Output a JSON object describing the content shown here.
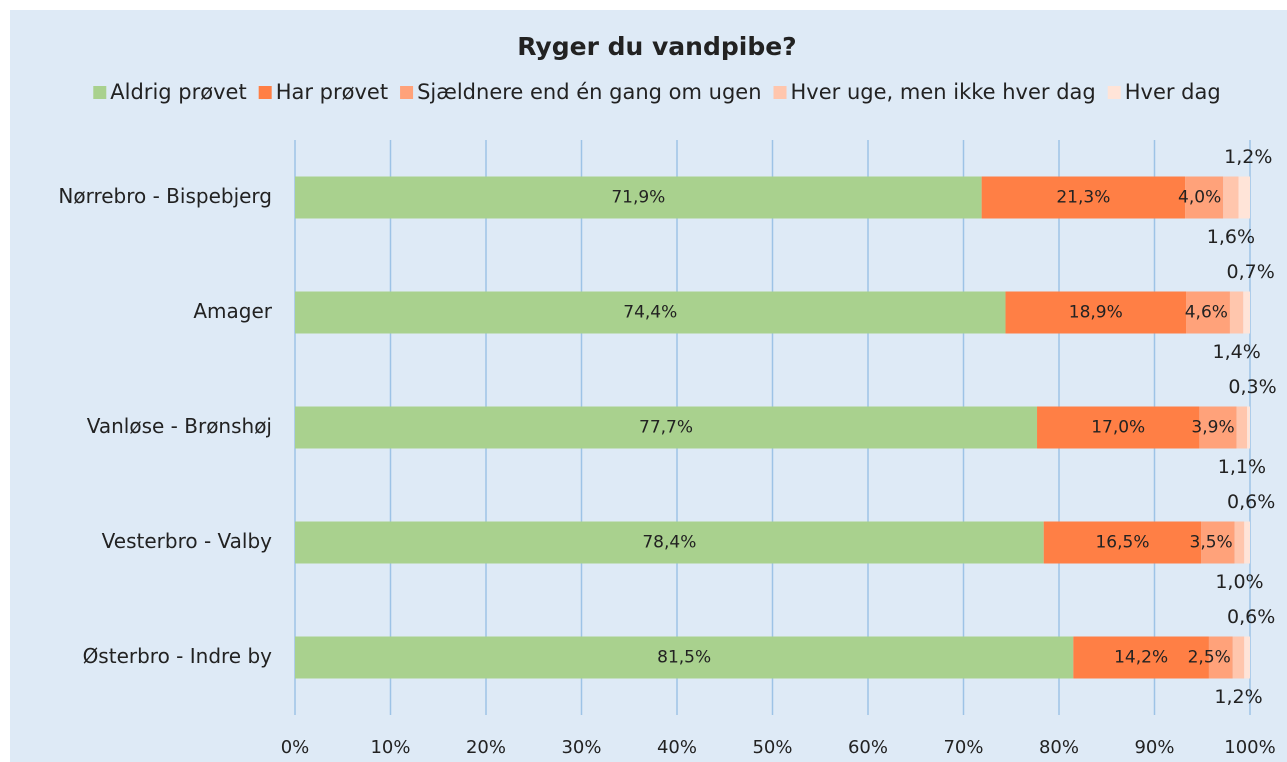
{
  "chart_data": {
    "type": "stacked_barh",
    "title": "Ryger du vandpibe?",
    "categories": [
      "Nørrebro - Bispebjerg",
      "Amager",
      "Vanløse - Brønshøj",
      "Vesterbro - Valby",
      "Østerbro - Indre by"
    ],
    "series": [
      {
        "name": "Aldrig prøvet",
        "color": "#a9d18e",
        "values": [
          71.9,
          74.4,
          77.7,
          78.4,
          81.5
        ],
        "value_labels": [
          "71,9%",
          "74,4%",
          "77,7%",
          "78,4%",
          "81,5%"
        ]
      },
      {
        "name": "Har prøvet",
        "color": "#ff7f45",
        "values": [
          21.3,
          18.9,
          17.0,
          16.5,
          14.2
        ],
        "value_labels": [
          "21,3%",
          "18,9%",
          "17,0%",
          "16,5%",
          "14,2%"
        ]
      },
      {
        "name": "Sjældnere end én gang om ugen",
        "color": "#ffa27a",
        "values": [
          4.0,
          4.6,
          3.9,
          3.5,
          2.5
        ],
        "value_labels": [
          "4,0%",
          "4,6%",
          "3,9%",
          "3,5%",
          "2,5%"
        ]
      },
      {
        "name": "Hver uge, men ikke hver dag",
        "color": "#ffc6ad",
        "values": [
          1.6,
          1.4,
          1.1,
          1.0,
          1.2
        ],
        "value_labels": [
          "1,6%",
          "1,4%",
          "1,1%",
          "1,0%",
          "1,2%"
        ]
      },
      {
        "name": "Hver dag",
        "color": "#ffe4d8",
        "values": [
          1.2,
          0.7,
          0.3,
          0.6,
          0.6
        ],
        "value_labels": [
          "1,2%",
          "0,7%",
          "0,3%",
          "0,6%",
          "0,6%"
        ]
      }
    ],
    "xlim": [
      0,
      100
    ],
    "xticks": [
      {
        "value": 0,
        "label": "0%"
      },
      {
        "value": 10,
        "label": "10%"
      },
      {
        "value": 20,
        "label": "20%"
      },
      {
        "value": 30,
        "label": "30%"
      },
      {
        "value": 40,
        "label": "40%"
      },
      {
        "value": 50,
        "label": "50%"
      },
      {
        "value": 60,
        "label": "60%"
      },
      {
        "value": 70,
        "label": "70%"
      },
      {
        "value": 80,
        "label": "80%"
      },
      {
        "value": 90,
        "label": "90%"
      },
      {
        "value": 100,
        "label": "100%"
      }
    ],
    "grid": true,
    "legend": "top"
  }
}
